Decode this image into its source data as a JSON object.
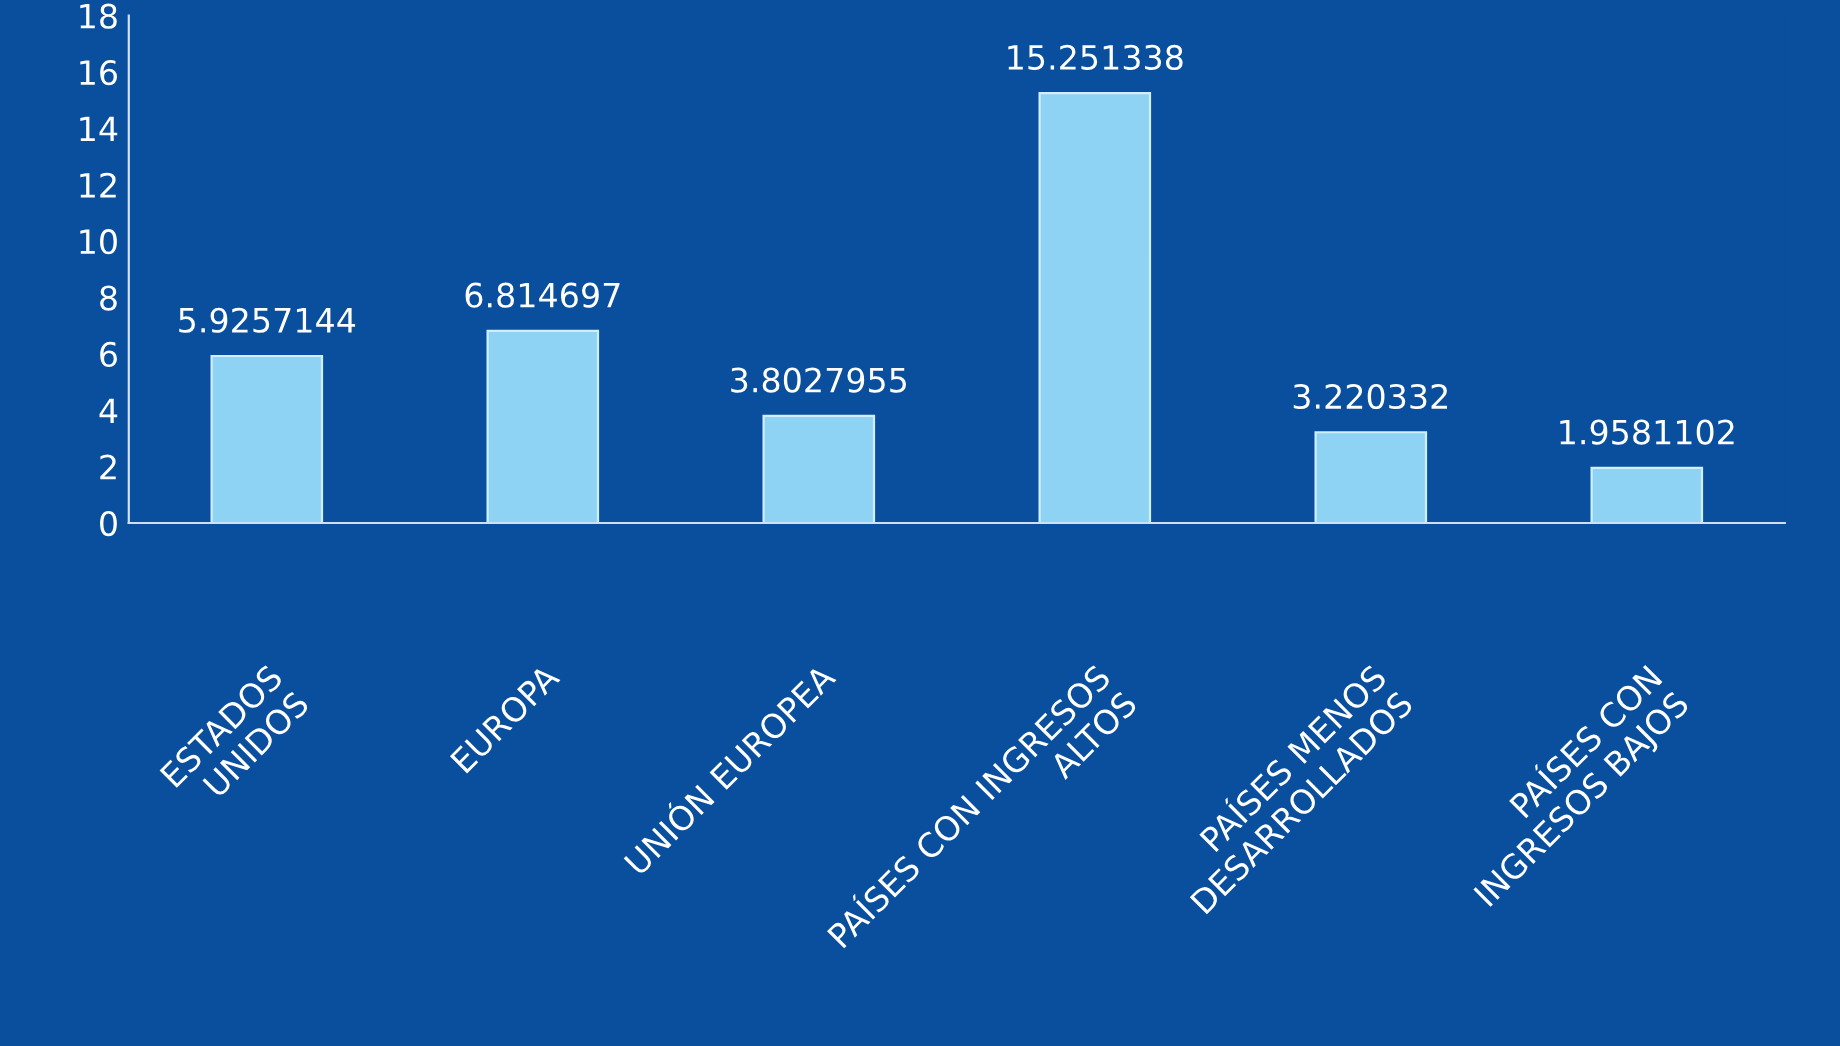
{
  "chart_data": {
    "type": "bar",
    "categories": [
      "ESTADOS\nUNIDOS",
      "EUROPA",
      "UNIÓN EUROPEA",
      "PAÍSES CON INGRESOS\nALTOS",
      "PAÍSES MENOS\nDESARROLLADOS",
      "PAÍSES CON\nINGRESOS BAJOS"
    ],
    "values": [
      5.9257144,
      6.814697,
      3.8027955,
      15.251338,
      3.220332,
      1.9581102
    ],
    "value_labels": [
      "5.9257144",
      "6.814697",
      "3.8027955",
      "15.251338",
      "3.220332",
      "1.9581102"
    ],
    "color": "#8fd3f4",
    "ylim": [
      0,
      18
    ],
    "yticks": [
      0,
      2,
      4,
      6,
      8,
      10,
      12,
      14,
      16,
      18
    ],
    "grid": false,
    "legend": false
  }
}
